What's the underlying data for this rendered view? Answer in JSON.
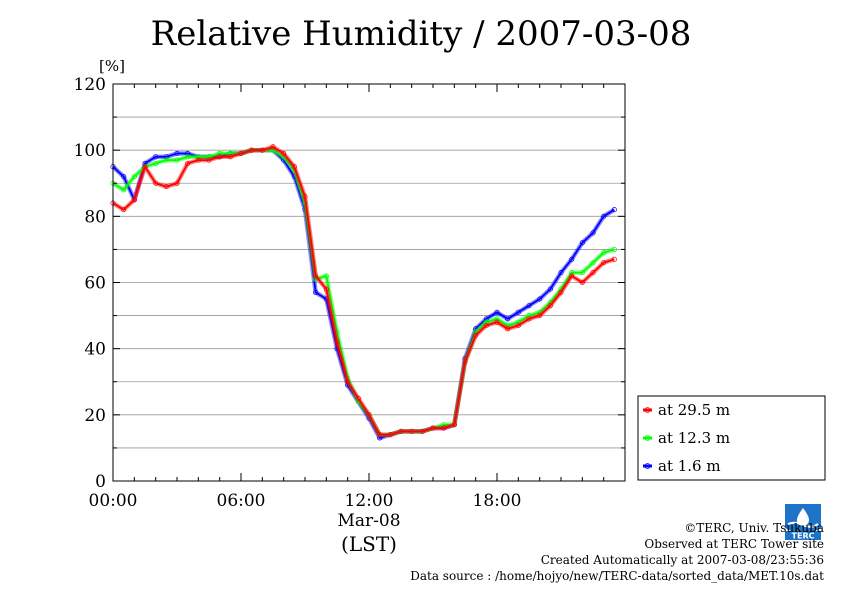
{
  "title": "Relative Humidity / 2007-03-08",
  "chart_data": {
    "type": "line",
    "title": "Relative Humidity / 2007-03-08",
    "ylabel": "[%]",
    "xlabel_date": "Mar-08",
    "xlabel_unit": "(LST)",
    "xlim_hours": [
      0,
      24
    ],
    "ylim": [
      0,
      120
    ],
    "xticks": [
      {
        "hour": 0,
        "label": "00:00"
      },
      {
        "hour": 6,
        "label": "06:00"
      },
      {
        "hour": 12,
        "label": "12:00"
      },
      {
        "hour": 18,
        "label": "18:00"
      }
    ],
    "yticks": [
      {
        "value": 0,
        "label": "0"
      },
      {
        "value": 20,
        "label": "20"
      },
      {
        "value": 40,
        "label": "40"
      },
      {
        "value": 60,
        "label": "60"
      },
      {
        "value": 80,
        "label": "80"
      },
      {
        "value": 100,
        "label": "100"
      },
      {
        "value": 120,
        "label": "120"
      }
    ],
    "grid": true,
    "legend_position": "right",
    "series": [
      {
        "name": "at 29.5 m",
        "color": "#ff0000",
        "x": [
          0,
          0.5,
          1,
          1.5,
          2,
          2.5,
          3,
          3.5,
          4,
          4.5,
          5,
          5.5,
          6,
          6.5,
          7,
          7.5,
          8,
          8.5,
          9,
          9.5,
          10,
          10.5,
          11,
          11.5,
          12,
          12.5,
          13,
          13.5,
          14,
          14.5,
          15,
          15.5,
          16,
          16.5,
          17,
          17.5,
          18,
          18.5,
          19,
          19.5,
          20,
          20.5,
          21,
          21.5,
          22,
          22.5,
          23,
          23.5
        ],
        "y": [
          84,
          82,
          85,
          95,
          90,
          89,
          90,
          96,
          97,
          97,
          98,
          98,
          99,
          100,
          100,
          101,
          99,
          95,
          86,
          62,
          58,
          42,
          30,
          25,
          20,
          14,
          14,
          15,
          15,
          15,
          16,
          16,
          17,
          36,
          44,
          47,
          48,
          46,
          47,
          49,
          50,
          53,
          57,
          62,
          60,
          63,
          66,
          67
        ]
      },
      {
        "name": "at 12.3 m",
        "color": "#00ff00",
        "x": [
          0,
          0.5,
          1,
          1.5,
          2,
          2.5,
          3,
          3.5,
          4,
          4.5,
          5,
          5.5,
          6,
          6.5,
          7,
          7.5,
          8,
          8.5,
          9,
          9.5,
          10,
          10.5,
          11,
          11.5,
          12,
          12.5,
          13,
          13.5,
          14,
          14.5,
          15,
          15.5,
          16,
          16.5,
          17,
          17.5,
          18,
          18.5,
          19,
          19.5,
          20,
          20.5,
          21,
          21.5,
          22,
          22.5,
          23,
          23.5
        ],
        "y": [
          90,
          88,
          92,
          95,
          96,
          97,
          97,
          98,
          98,
          98,
          99,
          99,
          99,
          100,
          100,
          100,
          98,
          94,
          84,
          61,
          62,
          45,
          31,
          24,
          20,
          14,
          14,
          15,
          15,
          15,
          16,
          17,
          17,
          36,
          45,
          48,
          49,
          47,
          48,
          50,
          51,
          54,
          58,
          63,
          63,
          66,
          69,
          70
        ]
      },
      {
        "name": "at 1.6 m",
        "color": "#0000ff",
        "x": [
          0,
          0.5,
          1,
          1.5,
          2,
          2.5,
          3,
          3.5,
          4,
          4.5,
          5,
          5.5,
          6,
          6.5,
          7,
          7.5,
          8,
          8.5,
          9,
          9.5,
          10,
          10.5,
          11,
          11.5,
          12,
          12.5,
          13,
          13.5,
          14,
          14.5,
          15,
          15.5,
          16,
          16.5,
          17,
          17.5,
          18,
          18.5,
          19,
          19.5,
          20,
          20.5,
          21,
          21.5,
          22,
          22.5,
          23,
          23.5
        ],
        "y": [
          95,
          92,
          85,
          96,
          98,
          98,
          99,
          99,
          98,
          98,
          98,
          99,
          99,
          100,
          100,
          100,
          97,
          92,
          82,
          57,
          55,
          40,
          29,
          24,
          19,
          13,
          14,
          15,
          15,
          15,
          16,
          16,
          17,
          37,
          46,
          49,
          51,
          49,
          51,
          53,
          55,
          58,
          63,
          67,
          72,
          75,
          80,
          82
        ]
      }
    ]
  },
  "credits": {
    "line1": "©TERC, Univ. Tsukuba",
    "line2": "Observed at TERC Tower site",
    "line3": "Created Automatically at 2007-03-08/23:55:36",
    "line4": "Data source : /home/hojyo/new/TERC-data/sorted_data/MET.10s.dat"
  },
  "logo": {
    "icon": "terc-logo-icon",
    "text": "TERC",
    "color": "#1e73c8"
  }
}
